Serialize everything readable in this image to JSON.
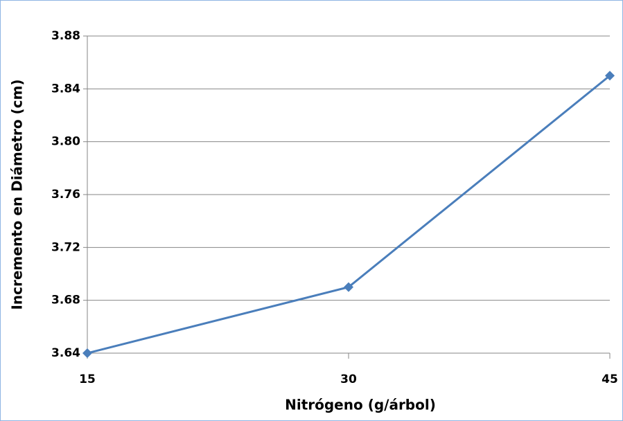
{
  "chart_data": {
    "type": "line",
    "x": [
      15,
      30,
      45
    ],
    "values": [
      3.64,
      3.69,
      3.85
    ],
    "color": "#4a7ebb",
    "xlabel": "Nitrógeno (g/árbol)",
    "ylabel": "Incremento en Diámetro (cm)",
    "xlim": [
      15,
      45
    ],
    "xticks": [
      15,
      30,
      45
    ],
    "ylim": [
      3.64,
      3.88
    ],
    "yticks": [
      3.64,
      3.68,
      3.72,
      3.76,
      {
        "value": 3.8,
        "label": "3.80"
      },
      3.84,
      3.88
    ],
    "grid": true
  }
}
